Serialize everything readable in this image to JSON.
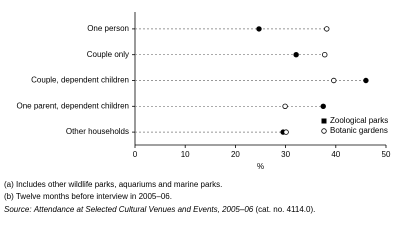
{
  "chart_data": {
    "type": "dot",
    "categories": [
      "One person",
      "Couple only",
      "Couple, dependent children",
      "One parent, dependent children",
      "Other households"
    ],
    "series": [
      {
        "name": "Zoological parks",
        "color": "#000000",
        "marker": "filled",
        "values": [
          24.7,
          32.1,
          46.0,
          37.5,
          29.5
        ]
      },
      {
        "name": "Botanic gardens",
        "color": "#000000",
        "marker": "open",
        "values": [
          38.2,
          37.8,
          39.6,
          29.9,
          30.1
        ]
      }
    ],
    "xlabel": "%",
    "xlim": [
      0,
      50
    ],
    "xticks": [
      0,
      10,
      20,
      30,
      40,
      50
    ],
    "legend": "bottom-right",
    "notes": [
      "(a) Includes other wildlife parks, aquariums and marine parks.",
      "(b) Twelve months before interview in 2005–06."
    ],
    "source": {
      "label": "Source:",
      "title": "Attendance at Selected Cultural Venues and Events, 2005–06",
      "ref": "(cat. no. 4114.0)."
    }
  }
}
